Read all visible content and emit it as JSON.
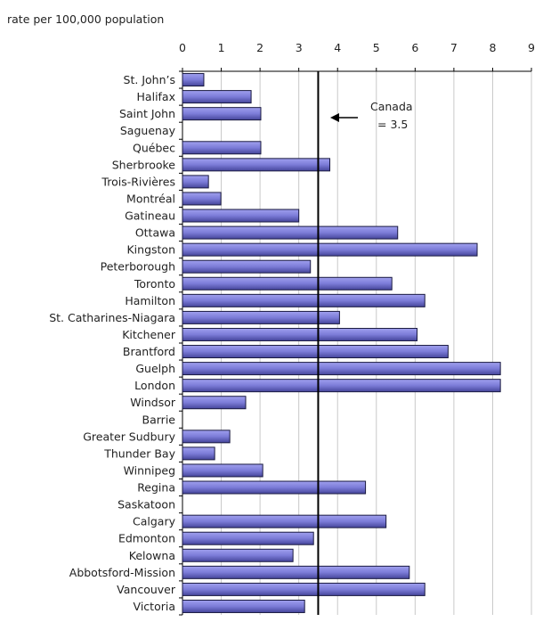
{
  "chart_data": {
    "type": "bar",
    "orientation": "horizontal",
    "title": "",
    "xlabel": "rate per 100,000 population",
    "ylabel": "",
    "xlim": [
      0,
      9
    ],
    "xticks": [
      "0",
      "1",
      "2",
      "3",
      "4",
      "5",
      "6",
      "7",
      "8",
      "9"
    ],
    "grid": true,
    "categories": [
      "St. John’s",
      "Halifax",
      "Saint John",
      "Saguenay",
      "Québec",
      "Sherbrooke",
      "Trois-Rivières",
      "Montréal",
      "Gatineau",
      "Ottawa",
      "Kingston",
      "Peterborough",
      "Toronto",
      "Hamilton",
      "St. Catharines-Niagara",
      "Kitchener",
      "Brantford",
      "Guelph",
      "London",
      "Windsor",
      "Barrie",
      "Greater Sudbury",
      "Thunder Bay",
      "Winnipeg",
      "Regina",
      "Saskatoon",
      "Calgary",
      "Edmonton",
      "Kelowna",
      "Abbotsford-Mission",
      "Vancouver",
      "Victoria"
    ],
    "values": [
      0.55,
      1.77,
      2.02,
      0,
      2.02,
      3.8,
      0.67,
      0.99,
      3.0,
      5.55,
      7.6,
      3.3,
      5.4,
      6.25,
      4.05,
      6.05,
      6.85,
      8.2,
      8.2,
      1.63,
      0,
      1.22,
      0.83,
      2.07,
      4.72,
      0,
      5.25,
      3.38,
      2.85,
      5.85,
      6.25,
      3.15
    ],
    "reference_line": {
      "value": 3.5,
      "label_line1": "Canada",
      "label_line2": "= 3.5"
    },
    "colors": {
      "bar": "#7c7cd8",
      "bar_dark": "#3c3c8c",
      "grid": "#c8c8c8"
    }
  }
}
